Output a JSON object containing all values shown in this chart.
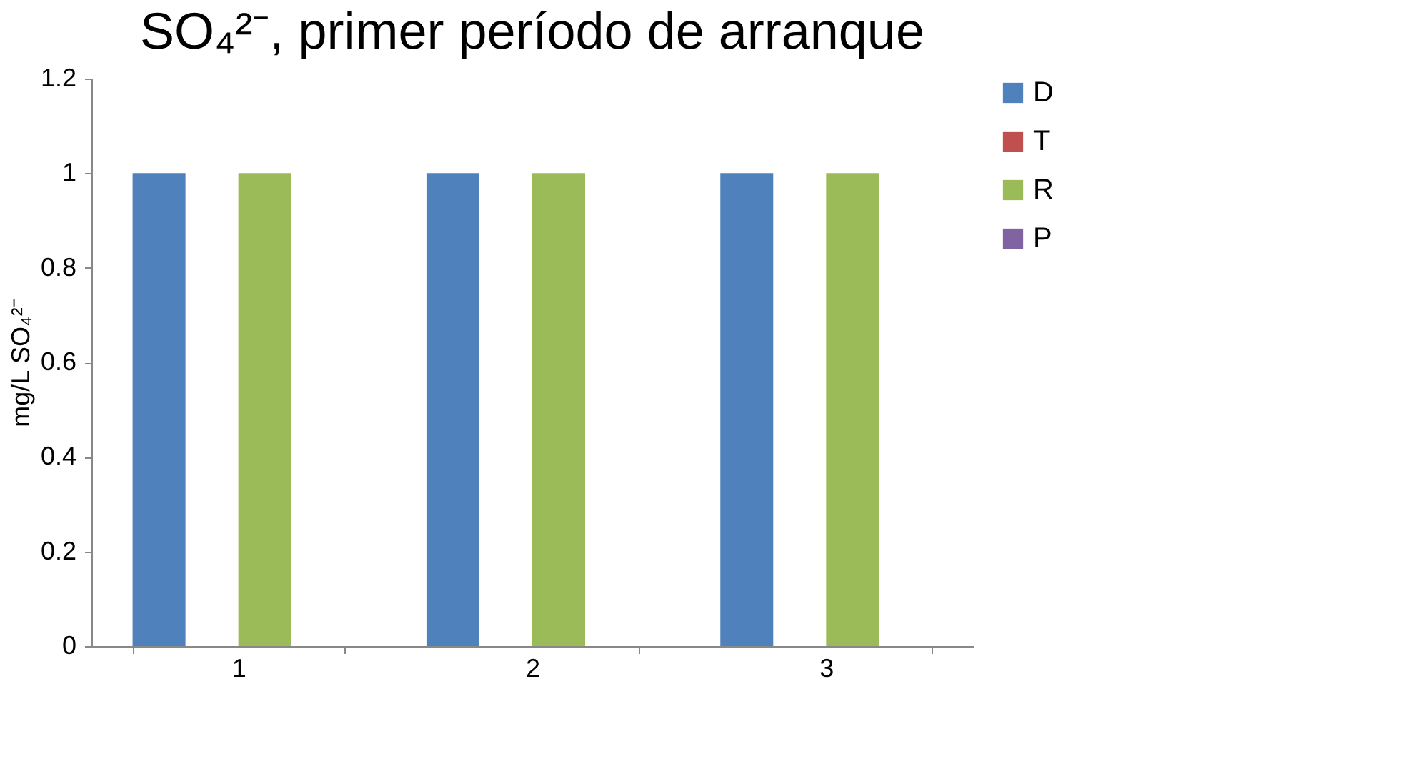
{
  "chart_data": {
    "type": "bar",
    "title": "SO₄²⁻, primer período de arranque",
    "ylabel": "mg/L SO₄²⁻",
    "categories": [
      "1",
      "2",
      "3"
    ],
    "series": [
      {
        "name": "D",
        "color": "#4f81bd",
        "values": [
          1,
          1,
          1
        ]
      },
      {
        "name": "T",
        "color": "#c0504d",
        "values": [
          0,
          0,
          0
        ]
      },
      {
        "name": "R",
        "color": "#9bbb59",
        "values": [
          1,
          1,
          1
        ]
      },
      {
        "name": "P",
        "color": "#8064a2",
        "values": [
          0,
          0,
          0
        ]
      }
    ],
    "ylim": [
      0,
      1.2
    ],
    "yticks": [
      0,
      0.2,
      0.4,
      0.6,
      0.8,
      1,
      1.2
    ],
    "grid": false,
    "legend": "right"
  }
}
